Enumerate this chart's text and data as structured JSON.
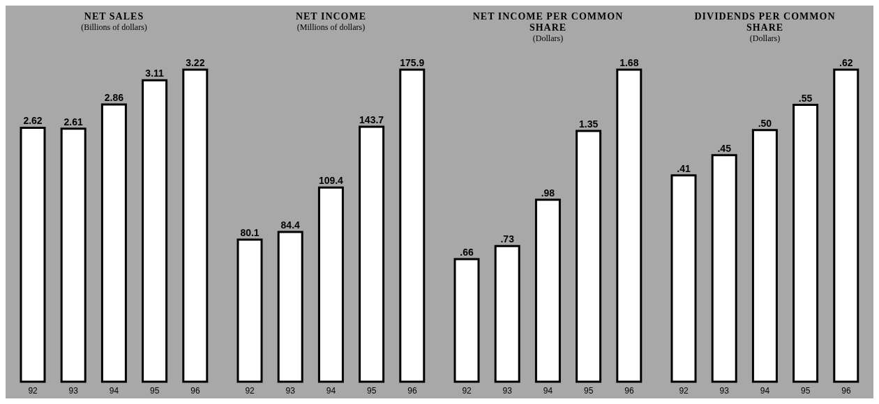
{
  "chart_data": [
    {
      "type": "bar",
      "title": "NET SALES",
      "subtitle": "(Billions of dollars)",
      "categories": [
        "92",
        "93",
        "94",
        "95",
        "96"
      ],
      "values": [
        2.62,
        2.61,
        2.86,
        3.11,
        3.22
      ],
      "color": "#ffffff",
      "data_labels": true
    },
    {
      "type": "bar",
      "title": "NET INCOME",
      "subtitle": "(Millions of dollars)",
      "categories": [
        "92",
        "93",
        "94",
        "95",
        "96"
      ],
      "values": [
        80.1,
        84.4,
        109.4,
        143.7,
        175.9
      ],
      "color": "#ffffff",
      "data_labels": true
    },
    {
      "type": "bar",
      "title": "NET INCOME PER COMMON SHARE",
      "subtitle": "(Dollars)",
      "categories": [
        "92",
        "93",
        "94",
        "95",
        "96"
      ],
      "values": [
        0.66,
        0.73,
        0.98,
        1.35,
        1.68
      ],
      "value_labels": [
        ".66",
        ".73",
        ".98",
        "1.35",
        "1.68"
      ],
      "color": "#ffffff"
    },
    {
      "type": "bar",
      "title": "DIVIDENDS PER COMMON SHARE",
      "subtitle": "(Dollars)",
      "categories": [
        "92",
        "93",
        "94",
        "95",
        "96"
      ],
      "values": [
        0.41,
        0.45,
        0.5,
        0.55,
        0.62
      ],
      "value_labels": [
        ".41",
        ".45",
        ".50",
        ".55",
        ".62"
      ],
      "color": "#ffffff"
    }
  ]
}
